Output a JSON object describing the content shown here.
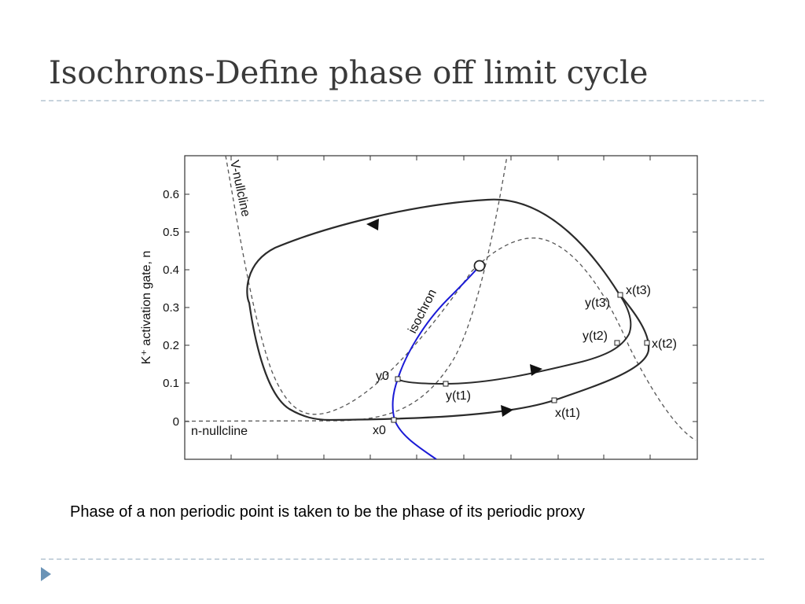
{
  "slide": {
    "title": "Isochrons-Define phase off limit cycle",
    "caption": "Phase of a non periodic point is taken to be the phase of its periodic proxy"
  },
  "figure": {
    "y_axis_label": "K⁺ activation gate, n",
    "y_ticks": [
      "0.6",
      "0.5",
      "0.4",
      "0.3",
      "0.2",
      "0.1",
      "0"
    ],
    "labels": {
      "v_nullcline": "V-nullcline",
      "n_nullcline": "n-nullcline",
      "isochron": "isochron",
      "x0": "x0",
      "y0": "y0",
      "x_t1": "x(t1)",
      "x_t2": "x(t2)",
      "x_t3": "x(t3)",
      "y_t1": "y(t1)",
      "y_t2": "y(t2)",
      "y_t3": "y(t3)"
    },
    "colors": {
      "isochron": "#1a1ad6",
      "trajectory": "#2b2b2b",
      "nullcline": "#555555"
    }
  }
}
